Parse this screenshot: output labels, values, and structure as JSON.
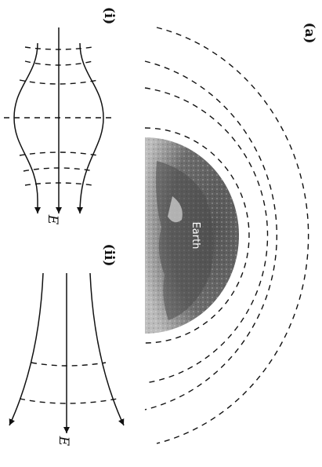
{
  "panel_a": {
    "label": "(a)",
    "earth_label": "Earth",
    "colors": {
      "earth_dark": "#5e5e5e",
      "earth_light": "#b9b9b9",
      "line": "#111111"
    }
  },
  "panel_i": {
    "label": "(i)",
    "field_label": "E"
  },
  "panel_ii": {
    "label": "(ii)",
    "field_label": "E"
  }
}
